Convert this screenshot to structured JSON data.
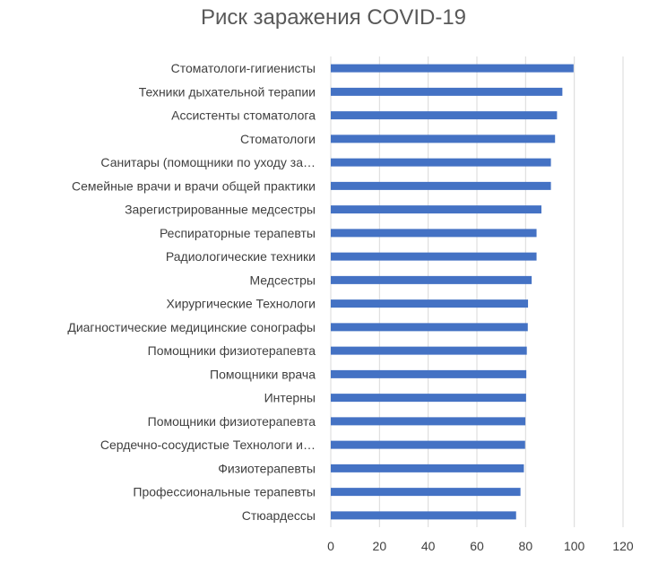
{
  "chart_data": {
    "type": "bar",
    "orientation": "horizontal",
    "title": "Риск заражения COVID-19",
    "xlabel": "",
    "ylabel": "",
    "xlim": [
      0,
      120
    ],
    "x_ticks": [
      0,
      20,
      40,
      60,
      80,
      100,
      120
    ],
    "grid": "vertical",
    "legend": "none",
    "bar_color": "#4472C4",
    "categories": [
      "Стоматологи-гигиенисты",
      "Техники дыхательной терапии",
      "Ассистенты стоматолога",
      "Стоматологи",
      "Санитары (помощники по уходу за…",
      "Семейные врачи и врачи общей практики",
      "Зарегистрированные медсестры",
      "Респираторные терапевты",
      "Радиологические техники",
      "Медсестры",
      "Хирургические Технологи",
      "Диагностические медицинские сонографы",
      "Помощники физиотерапевта",
      "Помощники врача",
      "Интерны",
      "Помощники физиотерапевта",
      "Сердечно-сосудистые Технологи и…",
      "Физиотерапевты",
      "Профессиональные терапевты",
      "Стюардессы"
    ],
    "values": [
      99.7,
      95.1,
      92.9,
      92.1,
      90.4,
      90.4,
      86.5,
      84.5,
      84.5,
      82.5,
      81.0,
      80.9,
      80.5,
      80.3,
      80.2,
      79.9,
      79.8,
      79.3,
      77.9,
      76.1
    ]
  }
}
